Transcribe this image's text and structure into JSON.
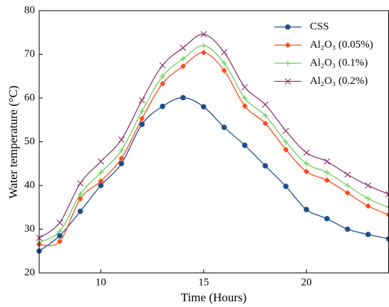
{
  "chart_data": {
    "type": "line",
    "x_label": "Time (Hours)",
    "y_label": "Water temperature (°C)",
    "x": [
      7,
      8,
      9,
      10,
      11,
      12,
      13,
      14,
      15,
      16,
      17,
      18,
      19,
      20,
      21,
      22,
      23,
      24
    ],
    "xlim": [
      7,
      24
    ],
    "xticks": [
      10,
      15,
      20
    ],
    "ylim": [
      20,
      80
    ],
    "yticks": [
      20,
      30,
      40,
      50,
      60,
      70,
      80
    ],
    "legend": "upper right",
    "series": [
      {
        "name": "CSS",
        "color": "#1f4e8c",
        "marker": "circle",
        "values": [
          25,
          28.5,
          34.1,
          40,
          45,
          54,
          58.1,
          60.1,
          58,
          53.3,
          49.2,
          44.5,
          39.8,
          34.5,
          32.4,
          30,
          28.8,
          27.8
        ]
      },
      {
        "name": "Al₂O₃ (0.05%)",
        "color": "#ff4a1c",
        "marker": "diamond",
        "values": [
          26.5,
          27.2,
          37,
          41,
          46.2,
          55.3,
          63.3,
          67.3,
          70.4,
          66.3,
          58.2,
          54.2,
          48.2,
          43.2,
          41.2,
          38.3,
          35.3,
          33.3
        ]
      },
      {
        "name": "Al₂O₃ (0.1%)",
        "color": "#6fcf5f",
        "marker": "plus",
        "values": [
          27,
          29.5,
          38,
          43,
          48,
          57,
          65,
          69,
          72,
          68,
          60,
          56,
          50,
          45,
          43,
          40,
          37,
          35
        ]
      },
      {
        "name": "Al₂O₃ (0.2%)",
        "color": "#8e3a6a",
        "marker": "cross",
        "values": [
          28,
          31.5,
          40.5,
          45.5,
          50.5,
          59.5,
          67.5,
          71.5,
          74.6,
          70.5,
          62.5,
          58.5,
          52.5,
          47.5,
          45.5,
          42.5,
          40,
          38
        ]
      }
    ]
  }
}
